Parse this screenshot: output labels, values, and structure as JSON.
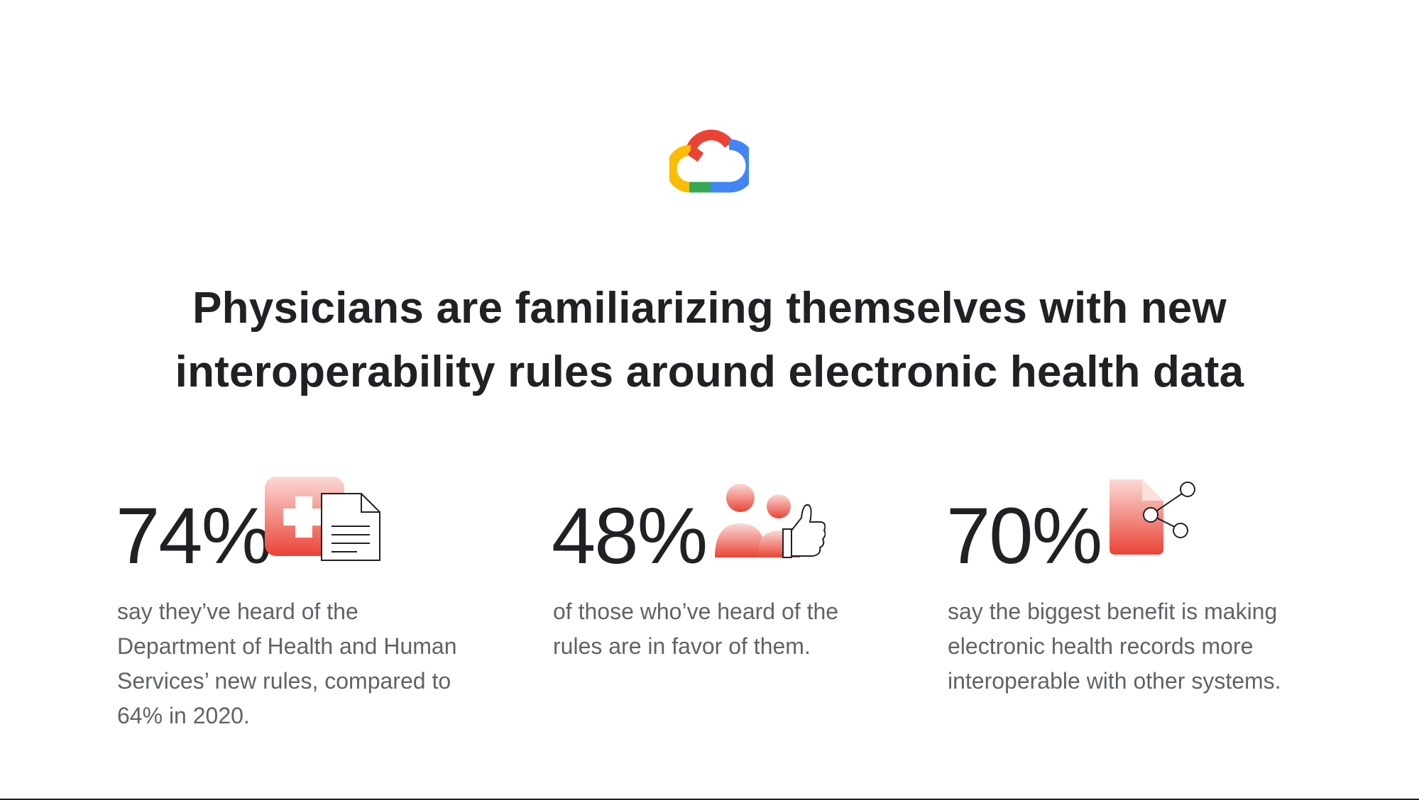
{
  "logo": {
    "icon": "google-cloud-logo-icon",
    "colors": [
      "#EA4335",
      "#4285F4",
      "#34A853",
      "#FBBC04"
    ]
  },
  "headline": {
    "lines": [
      "Physicians are familiarizing themselves with new",
      "interoperability rules around electronic health data"
    ]
  },
  "stats": [
    {
      "value": "74%",
      "icon": "medical-cross-document-icon",
      "description": [
        "say they’ve heard of the",
        "Department of Health and Human",
        "Services’ new rules, compared to",
        "64% in 2020."
      ]
    },
    {
      "value": "48%",
      "icon": "people-thumbs-up-icon",
      "description": [
        "of those who’ve heard of the",
        "rules are in favor of them."
      ]
    },
    {
      "value": "70%",
      "icon": "share-document-icon",
      "description": [
        "say the biggest benefit is making",
        "electronic health records more",
        "interoperable with other systems."
      ]
    }
  ],
  "colors": {
    "accent_red": "#EA4335",
    "accent_light": "#F8B4AE",
    "text_dark": "#202124",
    "text_gray": "#5F6368"
  }
}
